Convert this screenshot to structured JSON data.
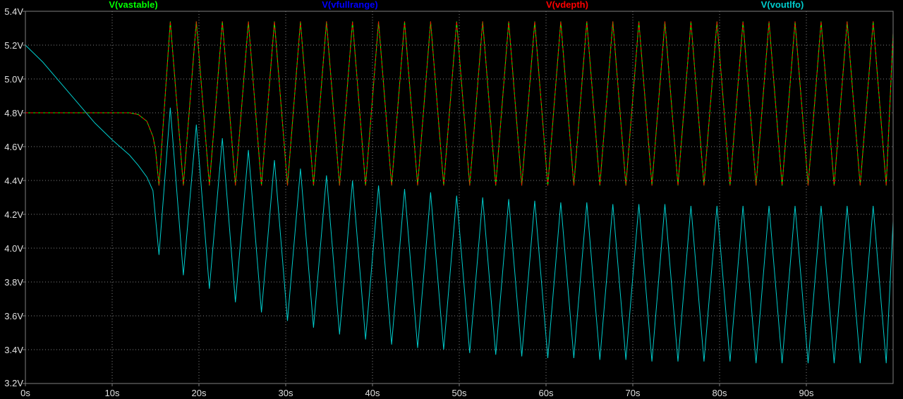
{
  "chart_data": {
    "type": "line",
    "title": "",
    "xlabel": "",
    "ylabel": "",
    "xlim": [
      0,
      100
    ],
    "ylim": [
      3.2,
      5.4
    ],
    "grid": true,
    "background": "#000000",
    "grid_color": "#808080",
    "x_ticks": [
      0,
      10,
      20,
      30,
      40,
      50,
      60,
      70,
      80,
      90
    ],
    "x_tick_labels": [
      "0s",
      "10s",
      "20s",
      "30s",
      "40s",
      "50s",
      "60s",
      "70s",
      "80s",
      "90s"
    ],
    "y_ticks": [
      3.2,
      3.4,
      3.6,
      3.8,
      4.0,
      4.2,
      4.4,
      4.6,
      4.8,
      5.0,
      5.2,
      5.4
    ],
    "y_tick_labels": [
      "3.2V",
      "3.4V",
      "3.6V",
      "3.8V",
      "4.0V",
      "4.2V",
      "4.4V",
      "4.6V",
      "4.8V",
      "5.0V",
      "5.2V",
      "5.4V"
    ],
    "legend_placement": "top",
    "series": [
      {
        "name": "V(vastable)",
        "color": "#00ff00",
        "x": [
          0,
          12,
          13,
          14,
          14.7,
          15.0,
          15.4,
          16.7,
          18.2,
          19.7,
          21.2,
          22.7,
          24.2,
          25.7,
          27.2,
          28.7,
          30.2,
          31.7,
          33.2,
          34.7,
          36.2,
          37.7,
          39.2,
          40.7,
          42.2,
          43.7,
          45.2,
          46.7,
          48.2,
          49.7,
          51.2,
          52.7,
          54.2,
          55.7,
          57.2,
          58.7,
          60.2,
          61.7,
          63.2,
          64.7,
          66.2,
          67.7,
          69.2,
          70.7,
          72.2,
          73.7,
          75.2,
          76.7,
          78.2,
          79.7,
          81.2,
          82.7,
          84.2,
          85.7,
          87.2,
          88.7,
          90.2,
          91.7,
          93.2,
          94.7,
          96.2,
          97.7,
          99.2,
          100
        ],
        "y": [
          4.8,
          4.8,
          4.79,
          4.75,
          4.66,
          4.58,
          4.37,
          5.34,
          4.37,
          5.34,
          4.37,
          5.34,
          4.37,
          5.34,
          4.37,
          5.34,
          4.37,
          5.34,
          4.37,
          5.34,
          4.37,
          5.34,
          4.37,
          5.34,
          4.37,
          5.34,
          4.37,
          5.34,
          4.37,
          5.34,
          4.37,
          5.34,
          4.37,
          5.34,
          4.37,
          5.34,
          4.37,
          5.34,
          4.37,
          5.34,
          4.37,
          5.34,
          4.37,
          5.34,
          4.37,
          5.34,
          4.37,
          5.34,
          4.37,
          5.34,
          4.37,
          5.34,
          4.37,
          5.34,
          4.37,
          5.34,
          4.37,
          5.34,
          4.37,
          5.34,
          4.37,
          5.34,
          4.37,
          5.27
        ]
      },
      {
        "name": "V(vfullrange)",
        "color": "#0000ff",
        "x": [],
        "y": []
      },
      {
        "name": "V(vdepth)",
        "color": "#ff0000",
        "x": [
          0,
          12,
          13,
          14,
          14.7,
          15.0,
          15.4,
          16.7,
          18.2,
          19.7,
          21.2,
          22.7,
          24.2,
          25.7,
          27.2,
          28.7,
          30.2,
          31.7,
          33.2,
          34.7,
          36.2,
          37.7,
          39.2,
          40.7,
          42.2,
          43.7,
          45.2,
          46.7,
          48.2,
          49.7,
          51.2,
          52.7,
          54.2,
          55.7,
          57.2,
          58.7,
          60.2,
          61.7,
          63.2,
          64.7,
          66.2,
          67.7,
          69.2,
          70.7,
          72.2,
          73.7,
          75.2,
          76.7,
          78.2,
          79.7,
          81.2,
          82.7,
          84.2,
          85.7,
          87.2,
          88.7,
          90.2,
          91.7,
          93.2,
          94.7,
          96.2,
          97.7,
          99.2,
          100
        ],
        "y": [
          4.8,
          4.8,
          4.79,
          4.75,
          4.66,
          4.58,
          4.37,
          5.34,
          4.37,
          5.34,
          4.37,
          5.34,
          4.37,
          5.34,
          4.37,
          5.34,
          4.37,
          5.34,
          4.37,
          5.34,
          4.37,
          5.34,
          4.37,
          5.34,
          4.37,
          5.34,
          4.37,
          5.34,
          4.37,
          5.34,
          4.37,
          5.34,
          4.37,
          5.34,
          4.37,
          5.34,
          4.37,
          5.34,
          4.37,
          5.34,
          4.37,
          5.34,
          4.37,
          5.34,
          4.37,
          5.34,
          4.37,
          5.34,
          4.37,
          5.34,
          4.37,
          5.34,
          4.37,
          5.34,
          4.37,
          5.34,
          4.37,
          5.34,
          4.37,
          5.34,
          4.37,
          5.34,
          4.37,
          5.27
        ]
      },
      {
        "name": "V(voutlfo)",
        "color": "#00cccc",
        "x": [
          0,
          2,
          4,
          6,
          8,
          10,
          12,
          13,
          14,
          14.7,
          15.4,
          16.7,
          18.2,
          19.7,
          21.2,
          22.7,
          24.2,
          25.7,
          27.2,
          28.7,
          30.2,
          31.7,
          33.2,
          34.7,
          36.2,
          37.7,
          39.2,
          40.7,
          42.2,
          43.7,
          45.2,
          46.7,
          48.2,
          49.7,
          51.2,
          52.7,
          54.2,
          55.7,
          57.2,
          58.7,
          60.2,
          61.7,
          63.2,
          64.7,
          66.2,
          67.7,
          69.2,
          70.7,
          72.2,
          73.7,
          75.2,
          76.7,
          78.2,
          79.7,
          81.2,
          82.7,
          84.2,
          85.7,
          87.2,
          88.7,
          90.2,
          91.7,
          93.2,
          94.7,
          96.2,
          97.7,
          99.2,
          100
        ],
        "y": [
          5.2,
          5.1,
          4.98,
          4.86,
          4.74,
          4.64,
          4.55,
          4.49,
          4.42,
          4.34,
          3.96,
          4.83,
          3.84,
          4.73,
          3.76,
          4.65,
          3.68,
          4.58,
          3.62,
          4.52,
          3.57,
          4.47,
          3.53,
          4.43,
          3.49,
          4.4,
          3.46,
          4.37,
          3.43,
          4.35,
          3.41,
          4.33,
          3.4,
          4.31,
          3.38,
          4.3,
          3.37,
          4.29,
          3.36,
          4.28,
          3.35,
          4.27,
          3.35,
          4.27,
          3.34,
          4.26,
          3.34,
          4.26,
          3.33,
          4.26,
          3.33,
          4.25,
          3.33,
          4.25,
          3.33,
          4.25,
          3.32,
          4.25,
          3.32,
          4.25,
          3.32,
          4.25,
          3.32,
          4.25,
          3.32,
          4.25,
          3.32,
          4.16
        ]
      }
    ]
  }
}
